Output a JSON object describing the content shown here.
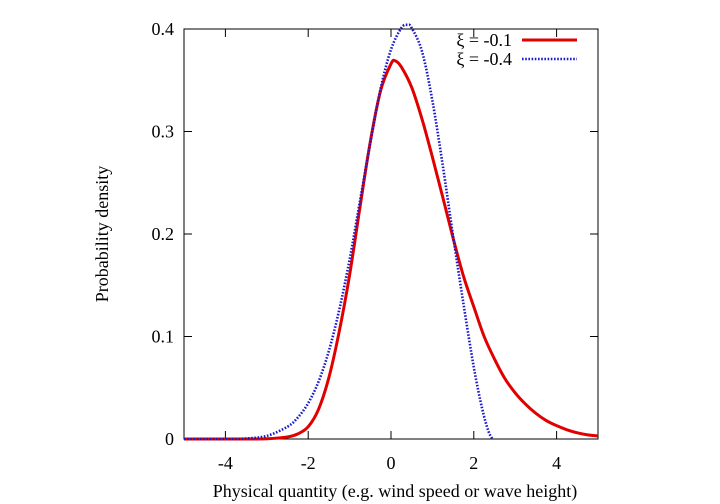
{
  "chart_data": {
    "type": "line",
    "title": "",
    "xlabel": "Physical quantity (e.g. wind speed or wave height)",
    "ylabel": "Probability density",
    "xlim": [
      -5,
      5
    ],
    "ylim": [
      0,
      0.4
    ],
    "xticks": [
      -4,
      -2,
      0,
      2,
      4
    ],
    "yticks": [
      0,
      0.1,
      0.2,
      0.3,
      0.4
    ],
    "xtick_labels": [
      "-4",
      "-2",
      "0",
      "2",
      "4"
    ],
    "ytick_labels": [
      "0",
      "0.1",
      "0.2",
      "0.3",
      "0.4"
    ],
    "legend_position": "top-right",
    "grid": false,
    "series": [
      {
        "name": "ξ = -0.1",
        "color": "#e00000",
        "style": "solid",
        "x": [
          -5,
          -4.5,
          -4,
          -3.5,
          -3,
          -2.5,
          -2.25,
          -2,
          -1.75,
          -1.5,
          -1.25,
          -1,
          -0.75,
          -0.5,
          -0.25,
          0,
          0.1,
          0.25,
          0.5,
          0.75,
          1,
          1.25,
          1.5,
          1.75,
          2,
          2.25,
          2.5,
          2.75,
          3,
          3.25,
          3.5,
          3.75,
          4,
          4.25,
          4.5,
          4.75,
          5
        ],
        "y": [
          0,
          0,
          0,
          0,
          0.0002,
          0.002,
          0.005,
          0.012,
          0.029,
          0.06,
          0.105,
          0.16,
          0.226,
          0.29,
          0.34,
          0.366,
          0.369,
          0.363,
          0.343,
          0.312,
          0.275,
          0.236,
          0.196,
          0.159,
          0.129,
          0.1,
          0.078,
          0.059,
          0.045,
          0.034,
          0.025,
          0.018,
          0.013,
          0.009,
          0.006,
          0.004,
          0.003
        ]
      },
      {
        "name": "ξ = -0.4",
        "color": "#1a1acc",
        "style": "dotted",
        "x": [
          -5,
          -4.5,
          -4,
          -3.5,
          -3,
          -2.5,
          -2.25,
          -2,
          -1.75,
          -1.5,
          -1.25,
          -1,
          -0.75,
          -0.5,
          -0.25,
          0,
          0.25,
          0.4,
          0.5,
          0.75,
          1,
          1.25,
          1.5,
          1.75,
          2,
          2.2,
          2.35,
          2.45
        ],
        "y": [
          0,
          0,
          0,
          0.0005,
          0.003,
          0.012,
          0.021,
          0.035,
          0.056,
          0.086,
          0.126,
          0.175,
          0.232,
          0.289,
          0.342,
          0.38,
          0.401,
          0.404,
          0.401,
          0.378,
          0.33,
          0.267,
          0.198,
          0.132,
          0.07,
          0.03,
          0.008,
          0
        ]
      }
    ]
  }
}
